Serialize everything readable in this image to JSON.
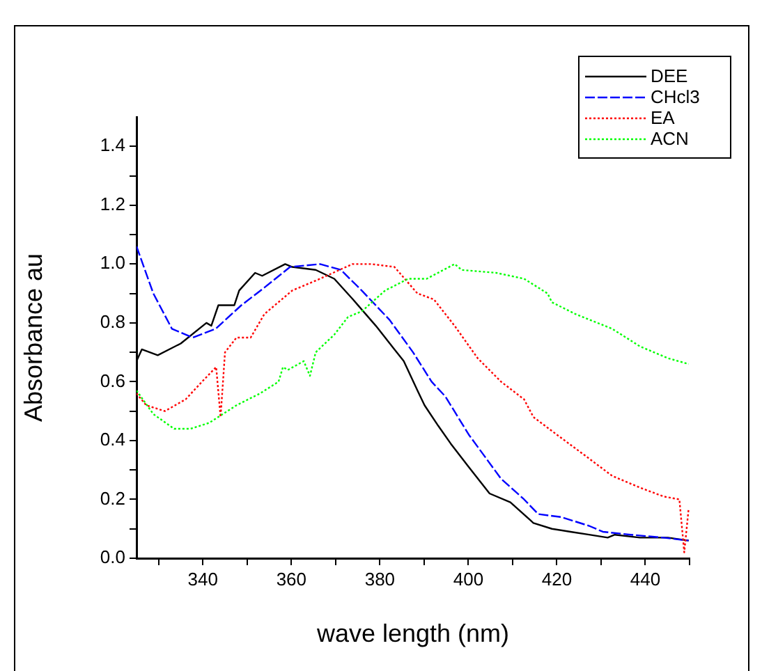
{
  "chart_data": {
    "type": "line",
    "xlabel": "wave length (nm)",
    "ylabel": "Absorbance au",
    "xlim": [
      325,
      450
    ],
    "xticks": [
      {
        "value": 330,
        "label": null
      },
      340,
      {
        "value": 350,
        "label": null
      },
      360,
      {
        "value": 370,
        "label": null
      },
      380,
      {
        "value": 390,
        "label": null
      },
      400,
      {
        "value": 410,
        "label": null
      },
      420,
      {
        "value": 430,
        "label": null
      },
      440,
      {
        "value": 450,
        "label": null
      }
    ],
    "ylim": [
      0,
      1.5
    ],
    "yticks": [
      {
        "value": 0,
        "label": "0.0"
      },
      {
        "value": 0.1,
        "label": null
      },
      {
        "value": 0.2,
        "label": "0.2"
      },
      {
        "value": 0.3,
        "label": null
      },
      {
        "value": 0.4,
        "label": "0.4"
      },
      {
        "value": 0.5,
        "label": null
      },
      {
        "value": 0.6,
        "label": "0.6"
      },
      {
        "value": 0.7,
        "label": null
      },
      {
        "value": 0.8,
        "label": "0.8"
      },
      {
        "value": 0.9,
        "label": null
      },
      {
        "value": 1.0,
        "label": "1.0"
      },
      {
        "value": 1.1,
        "label": null
      },
      {
        "value": 1.2,
        "label": "1.2"
      },
      {
        "value": 1.3,
        "label": null
      },
      {
        "value": 1.4,
        "label": "1.4"
      }
    ],
    "grid": false,
    "legend": "top right",
    "marker": "none",
    "series": [
      {
        "name": "DEE",
        "color": "#000000",
        "line_style": "solid",
        "x": [
          325,
          326.2,
          329.8,
          335,
          340.8,
          341.9,
          343.5,
          347.1,
          348.2,
          351.8,
          353.4,
          358.6,
          360.2,
          365.5,
          369.7,
          373.9,
          379.1,
          383.3,
          385.4,
          388.5,
          390.1,
          393.2,
          396,
          400.1,
          404.8,
          409.5,
          414.7,
          418.9,
          423.1,
          427.3,
          431.5,
          433.1,
          438.8,
          445.1,
          449.8
        ],
        "values": [
          0.67,
          0.71,
          0.69,
          0.73,
          0.8,
          0.79,
          0.86,
          0.86,
          0.91,
          0.97,
          0.96,
          1.0,
          0.99,
          0.98,
          0.95,
          0.88,
          0.79,
          0.71,
          0.67,
          0.57,
          0.52,
          0.45,
          0.39,
          0.31,
          0.22,
          0.19,
          0.12,
          0.1,
          0.09,
          0.08,
          0.07,
          0.08,
          0.07,
          0.07,
          0.06
        ]
      },
      {
        "name": "CHcl3",
        "color": "#0000ff",
        "line_style": "dashed",
        "x": [
          325,
          328.8,
          333,
          337.7,
          342.9,
          348.7,
          353.9,
          359.7,
          366.5,
          371.2,
          375.9,
          382.2,
          387.5,
          391.7,
          394.8,
          400.1,
          407.4,
          412.6,
          415.8,
          421,
          427.3,
          430.4,
          436.7,
          444,
          449.8
        ],
        "values": [
          1.06,
          0.9,
          0.78,
          0.75,
          0.78,
          0.86,
          0.92,
          0.99,
          1.0,
          0.98,
          0.91,
          0.81,
          0.7,
          0.6,
          0.55,
          0.42,
          0.27,
          0.2,
          0.15,
          0.14,
          0.11,
          0.09,
          0.08,
          0.07,
          0.06
        ]
      },
      {
        "name": "EA",
        "color": "#ff0000",
        "line_style": "dotted",
        "x": [
          325,
          327.2,
          331.4,
          336.1,
          339.8,
          343,
          344,
          345,
          347.6,
          350.8,
          353.9,
          360.2,
          366.5,
          373.8,
          378,
          383.3,
          388.5,
          392.2,
          396.9,
          402.1,
          407.4,
          412.6,
          414.7,
          420,
          426.3,
          432.5,
          438.8,
          444.1,
          447.7,
          448.8,
          449.8
        ],
        "values": [
          0.56,
          0.52,
          0.5,
          0.54,
          0.6,
          0.65,
          0.48,
          0.7,
          0.75,
          0.75,
          0.83,
          0.91,
          0.95,
          1.0,
          1.0,
          0.99,
          0.9,
          0.88,
          0.79,
          0.68,
          0.6,
          0.54,
          0.48,
          0.42,
          0.35,
          0.28,
          0.24,
          0.21,
          0.2,
          0.02,
          0.17
        ]
      },
      {
        "name": "ACN",
        "color": "#00ff00",
        "line_style": "dotted",
        "x": [
          325,
          328.8,
          333.5,
          337.2,
          341.4,
          347.6,
          352.9,
          357.1,
          358.1,
          359.2,
          362.8,
          364.2,
          365.5,
          369.7,
          372.8,
          376,
          381.2,
          386.4,
          390.6,
          396.9,
          398.5,
          406.3,
          412.6,
          417.9,
          418.9,
          424.2,
          432.5,
          438.8,
          445.1,
          449.8
        ],
        "values": [
          0.57,
          0.49,
          0.44,
          0.44,
          0.46,
          0.52,
          0.56,
          0.6,
          0.65,
          0.64,
          0.67,
          0.62,
          0.7,
          0.76,
          0.82,
          0.84,
          0.91,
          0.95,
          0.95,
          1.0,
          0.98,
          0.97,
          0.95,
          0.9,
          0.87,
          0.83,
          0.78,
          0.72,
          0.68,
          0.66
        ]
      }
    ]
  }
}
